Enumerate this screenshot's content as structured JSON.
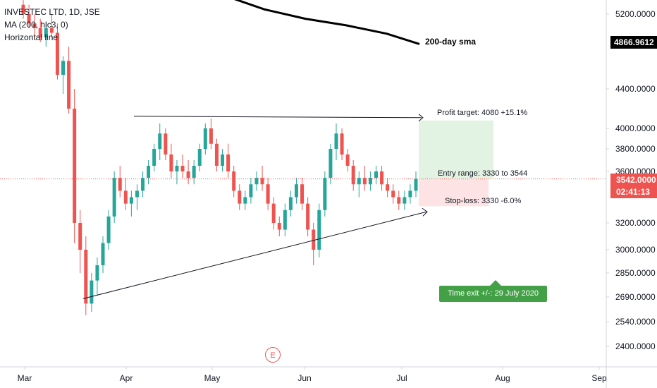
{
  "legend": {
    "symbol": "INVESTEC LTD, 1D, JSE",
    "ma": "MA (200, hlc3, 0)",
    "hline": "Horizontal line"
  },
  "annotations": {
    "sma_label": "200-day sma",
    "profit": "Profit target: 4080 +15.1%",
    "entry": "Entry range: 3330 to 3544",
    "stop": "Stop-loss: 3330 -6.0%",
    "time_exit": "Time exit +/-: 29 July 2020",
    "event": "E"
  },
  "price_labels": {
    "ma_value": "4866.9612",
    "current": "3542.0000",
    "timer": "02:41:13"
  },
  "colors": {
    "up": "#26a69a",
    "down": "#ef5350",
    "profit_zone": "#e3f3e3",
    "stop_zone": "#fde3e3"
  },
  "chart_data": {
    "type": "candlestick",
    "y_axis_ticks": [
      "5200.0000",
      "4400.0000",
      "4000.0000",
      "3800.0000",
      "3600.0000",
      "3200.0000",
      "3000.0000",
      "2850.0000",
      "2690.0000",
      "2540.0000",
      "2400.0000"
    ],
    "y_axis_values": [
      5200,
      4400,
      4000,
      3800,
      3600,
      3200,
      3000,
      2850,
      2690,
      2540,
      2400
    ],
    "x_axis_ticks": [
      "Mar",
      "Apr",
      "May",
      "Jun",
      "Jul",
      "Aug",
      "Sep"
    ],
    "candles": [
      [
        5300,
        5350,
        5150,
        5200
      ],
      [
        5200,
        5300,
        5050,
        5100
      ],
      [
        5100,
        5200,
        4950,
        5050
      ],
      [
        5050,
        5150,
        4900,
        4950
      ],
      [
        4950,
        5100,
        4850,
        5050
      ],
      [
        5050,
        5200,
        4950,
        5000
      ],
      [
        5000,
        5100,
        4500,
        4550
      ],
      [
        4550,
        4750,
        4350,
        4700
      ],
      [
        4700,
        4850,
        4150,
        4200
      ],
      [
        4200,
        4400,
        3050,
        3200
      ],
      [
        3200,
        3300,
        2850,
        3000
      ],
      [
        3000,
        3100,
        2580,
        2650
      ],
      [
        2650,
        2850,
        2600,
        2800
      ],
      [
        2800,
        2950,
        2700,
        2900
      ],
      [
        2900,
        3100,
        2850,
        3050
      ],
      [
        3050,
        3300,
        3000,
        3250
      ],
      [
        3250,
        3600,
        3200,
        3550
      ],
      [
        3550,
        3650,
        3400,
        3450
      ],
      [
        3450,
        3550,
        3300,
        3350
      ],
      [
        3350,
        3450,
        3250,
        3400
      ],
      [
        3400,
        3500,
        3300,
        3450
      ],
      [
        3450,
        3600,
        3400,
        3550
      ],
      [
        3550,
        3700,
        3500,
        3650
      ],
      [
        3650,
        3850,
        3600,
        3800
      ],
      [
        3800,
        4050,
        3700,
        3950
      ],
      [
        3950,
        4000,
        3700,
        3750
      ],
      [
        3750,
        3850,
        3550,
        3600
      ],
      [
        3600,
        3700,
        3500,
        3650
      ],
      [
        3650,
        3750,
        3550,
        3600
      ],
      [
        3600,
        3700,
        3500,
        3550
      ],
      [
        3550,
        3700,
        3500,
        3650
      ],
      [
        3650,
        3850,
        3600,
        3800
      ],
      [
        3800,
        4050,
        3750,
        4000
      ],
      [
        4000,
        4100,
        3800,
        3850
      ],
      [
        3850,
        3900,
        3600,
        3650
      ],
      [
        3650,
        3800,
        3600,
        3750
      ],
      [
        3750,
        3850,
        3550,
        3600
      ],
      [
        3600,
        3650,
        3400,
        3450
      ],
      [
        3450,
        3500,
        3300,
        3350
      ],
      [
        3350,
        3450,
        3300,
        3400
      ],
      [
        3400,
        3550,
        3350,
        3500
      ],
      [
        3500,
        3600,
        3450,
        3550
      ],
      [
        3550,
        3650,
        3450,
        3500
      ],
      [
        3500,
        3550,
        3300,
        3350
      ],
      [
        3350,
        3400,
        3150,
        3200
      ],
      [
        3200,
        3250,
        3100,
        3150
      ],
      [
        3150,
        3350,
        3100,
        3300
      ],
      [
        3300,
        3450,
        3250,
        3400
      ],
      [
        3400,
        3550,
        3350,
        3500
      ],
      [
        3500,
        3550,
        3300,
        3350
      ],
      [
        3350,
        3400,
        3100,
        3150
      ],
      [
        3150,
        3200,
        2900,
        3000
      ],
      [
        3000,
        3350,
        2950,
        3300
      ],
      [
        3300,
        3600,
        3250,
        3550
      ],
      [
        3550,
        3850,
        3500,
        3800
      ],
      [
        3800,
        4050,
        3700,
        3950
      ],
      [
        3950,
        4000,
        3700,
        3750
      ],
      [
        3750,
        3800,
        3600,
        3650
      ],
      [
        3650,
        3700,
        3450,
        3500
      ],
      [
        3500,
        3600,
        3400,
        3550
      ],
      [
        3550,
        3650,
        3450,
        3500
      ],
      [
        3500,
        3600,
        3450,
        3550
      ],
      [
        3550,
        3650,
        3500,
        3600
      ],
      [
        3600,
        3650,
        3450,
        3500
      ],
      [
        3500,
        3550,
        3400,
        3450
      ],
      [
        3450,
        3500,
        3350,
        3400
      ],
      [
        3400,
        3450,
        3300,
        3350
      ],
      [
        3350,
        3450,
        3300,
        3400
      ],
      [
        3400,
        3500,
        3350,
        3450
      ],
      [
        3450,
        3600,
        3400,
        3542
      ]
    ],
    "sma": [
      [
        0,
        5650
      ],
      [
        10,
        5400
      ],
      [
        20,
        5250
      ],
      [
        30,
        5150
      ],
      [
        40,
        5080
      ],
      [
        50,
        4990
      ],
      [
        58,
        4880
      ]
    ],
    "lines": {
      "resistance": 4080,
      "support_start": 2680,
      "support_end": 3330
    },
    "ylim": [
      2330,
      5420
    ]
  }
}
